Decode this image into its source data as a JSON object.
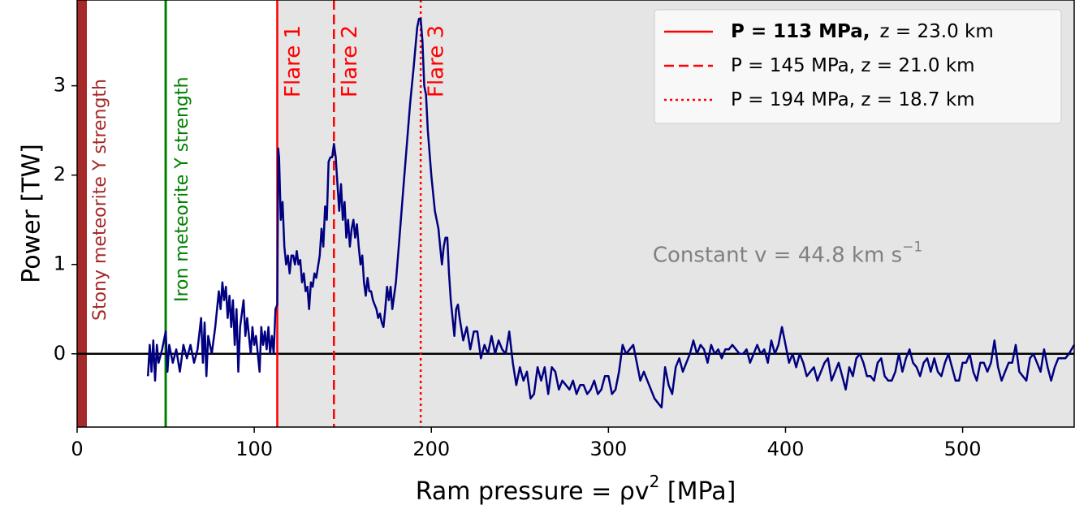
{
  "chart_data": {
    "type": "line",
    "xlabel": [
      "Ram pressure = ρv",
      "2",
      " [MPa]"
    ],
    "ylabel": "Power  [TW]",
    "xlim": [
      0,
      563
    ],
    "ylim": [
      -0.82,
      3.96
    ],
    "xticks": [
      0,
      100,
      200,
      300,
      400,
      500
    ],
    "yticks": [
      0,
      1,
      2,
      3
    ],
    "hline": 0,
    "shade_from": 113,
    "shade_color": "#e5e5e5",
    "bands": [
      {
        "range": [
          0,
          5.5
        ],
        "color": "#a52a2a",
        "label": "Stony meteorite Y strength"
      }
    ],
    "markers": [
      {
        "x": 50,
        "color": "#008000",
        "label": "Iron meteorite Y strength"
      }
    ],
    "flares": [
      {
        "x": 113,
        "label": "Flare 1",
        "dash": "solid",
        "legend_bold": "P = 113 MPa,",
        "legend": "z = 23.0 km"
      },
      {
        "x": 145,
        "label": "Flare 2",
        "dash": "dashed",
        "legend": "P = 145 MPa, z = 21.0 km"
      },
      {
        "x": 194,
        "label": "Flare 3",
        "dash": "dotted",
        "legend": "P = 194 MPa, z = 18.7 km"
      }
    ],
    "flare_color": "#ff0000",
    "legend_position": "upper right",
    "annotation": {
      "text": "Constant v = 44.8 km s",
      "sup": "−1",
      "x": 325,
      "y": 1.1
    },
    "series": [
      {
        "color": "#000080",
        "x": [
          40,
          41,
          42,
          43,
          44,
          45,
          46,
          48,
          50,
          51,
          52,
          54,
          56,
          58,
          60,
          62,
          64,
          66,
          68,
          70,
          71,
          72,
          73,
          74,
          76,
          78,
          80,
          81,
          82,
          83,
          84,
          85,
          86,
          87,
          88,
          89,
          90,
          91,
          92,
          94,
          95,
          96,
          98,
          99,
          100,
          101,
          102,
          103,
          104,
          105,
          106,
          107,
          108,
          109,
          110,
          111,
          112,
          113,
          113.5,
          114,
          115,
          116,
          117,
          118,
          119,
          120,
          121,
          122,
          123,
          124,
          125,
          126,
          127,
          128,
          129,
          130,
          131,
          132,
          133,
          134,
          135,
          137,
          138,
          139,
          140,
          141,
          142,
          143,
          144,
          145,
          146,
          147,
          148,
          149,
          150,
          151,
          152,
          153,
          154,
          155,
          156,
          157,
          158,
          159,
          160,
          161,
          162,
          163,
          164,
          165,
          166,
          167,
          168,
          169,
          170,
          171,
          172,
          173,
          174,
          175,
          176,
          177,
          178,
          180,
          182,
          184,
          186,
          188,
          190,
          192,
          193,
          194,
          195,
          196,
          197,
          198,
          200,
          202,
          204,
          205,
          206,
          207,
          208,
          209,
          210,
          211,
          212,
          213,
          214,
          215,
          216,
          218,
          220,
          222,
          224,
          226,
          228,
          230,
          232,
          234,
          236,
          238,
          240,
          242,
          244,
          246,
          248,
          250,
          252,
          254,
          256,
          258,
          260,
          262,
          264,
          266,
          268,
          270,
          272,
          274,
          276,
          278,
          280,
          282,
          284,
          286,
          288,
          290,
          292,
          294,
          296,
          298,
          300,
          302,
          304,
          306,
          308,
          310,
          312,
          314,
          316,
          318,
          320,
          322,
          324,
          326,
          328,
          330,
          332,
          334,
          336,
          338,
          340,
          342,
          344,
          346,
          348,
          350,
          352,
          354,
          356,
          358,
          360,
          362,
          364,
          366,
          368,
          370,
          372,
          374,
          376,
          378,
          380,
          382,
          384,
          386,
          388,
          390,
          392,
          394,
          396,
          398,
          400,
          402,
          404,
          406,
          408,
          410,
          412,
          414,
          416,
          418,
          420,
          422,
          424,
          426,
          428,
          430,
          432,
          434,
          436,
          438,
          440,
          442,
          444,
          446,
          448,
          450,
          452,
          454,
          456,
          458,
          460,
          462,
          464,
          466,
          468,
          470,
          472,
          474,
          476,
          478,
          480,
          482,
          484,
          486,
          488,
          490,
          492,
          494,
          496,
          498,
          500,
          502,
          504,
          506,
          508,
          510,
          512,
          514,
          516,
          518,
          520,
          522,
          524,
          526,
          528,
          530,
          532,
          534,
          536,
          538,
          540,
          542,
          544,
          546,
          548,
          550,
          552,
          554,
          556,
          558,
          560,
          563
        ],
        "y": [
          -0.25,
          0.1,
          -0.2,
          0.15,
          -0.3,
          0.1,
          -0.1,
          0.05,
          0.25,
          -0.2,
          0.1,
          -0.1,
          0.05,
          -0.2,
          0.1,
          -0.05,
          0.1,
          -0.1,
          0.05,
          0.4,
          -0.1,
          0.35,
          -0.25,
          0.2,
          0.0,
          0.3,
          0.7,
          0.5,
          0.8,
          0.6,
          0.75,
          0.4,
          0.65,
          0.3,
          0.6,
          0.1,
          0.5,
          -0.2,
          0.3,
          0.6,
          0.2,
          0.4,
          0.0,
          0.3,
          0.1,
          0.2,
          0.0,
          -0.2,
          0.3,
          0.1,
          0.25,
          0.05,
          0.3,
          0.0,
          0.2,
          0.0,
          0.5,
          0.55,
          2.3,
          2.2,
          1.5,
          1.7,
          1.2,
          1.0,
          1.1,
          0.9,
          1.1,
          1.1,
          1.0,
          1.15,
          1.0,
          1.05,
          0.8,
          0.9,
          0.7,
          0.75,
          0.5,
          0.8,
          0.75,
          0.9,
          0.85,
          1.1,
          1.4,
          1.2,
          1.65,
          1.5,
          2.15,
          2.2,
          2.2,
          2.35,
          2.2,
          1.9,
          1.6,
          1.9,
          1.5,
          1.7,
          1.3,
          1.5,
          1.2,
          1.4,
          1.5,
          1.3,
          1.45,
          1.2,
          1.0,
          1.1,
          0.8,
          0.65,
          0.85,
          0.7,
          0.7,
          0.6,
          0.55,
          0.5,
          0.4,
          0.45,
          0.35,
          0.3,
          0.5,
          0.75,
          0.6,
          0.75,
          0.5,
          0.8,
          1.3,
          1.8,
          2.3,
          2.8,
          3.2,
          3.65,
          3.75,
          3.75,
          3.5,
          3.0,
          2.9,
          2.5,
          2.0,
          1.6,
          1.4,
          1.2,
          1.0,
          1.2,
          1.3,
          1.3,
          0.9,
          0.6,
          0.4,
          0.2,
          0.5,
          0.55,
          0.4,
          0.15,
          0.3,
          0.05,
          0.25,
          0.25,
          -0.05,
          0.1,
          0.0,
          0.2,
          0.0,
          0.15,
          0.05,
          0.0,
          0.25,
          -0.1,
          -0.35,
          -0.15,
          -0.3,
          -0.2,
          -0.5,
          -0.45,
          -0.15,
          -0.3,
          -0.15,
          -0.45,
          -0.15,
          -0.2,
          -0.4,
          -0.3,
          -0.35,
          -0.4,
          -0.3,
          -0.45,
          -0.35,
          -0.35,
          -0.45,
          -0.4,
          -0.3,
          -0.45,
          -0.4,
          -0.25,
          -0.25,
          -0.45,
          -0.4,
          -0.2,
          0.1,
          0.0,
          0.05,
          0.1,
          -0.1,
          -0.3,
          -0.2,
          -0.3,
          -0.4,
          -0.5,
          -0.55,
          -0.6,
          -0.15,
          -0.35,
          -0.45,
          -0.15,
          -0.05,
          -0.2,
          -0.1,
          0.0,
          0.15,
          0.0,
          0.1,
          0.05,
          -0.1,
          0.1,
          0.0,
          0.05,
          -0.05,
          0.05,
          0.05,
          0.1,
          0.05,
          0.0,
          0.0,
          0.05,
          -0.1,
          0.0,
          0.1,
          0.0,
          0.05,
          -0.1,
          0.15,
          0.0,
          0.1,
          0.3,
          0.1,
          -0.1,
          0.0,
          -0.15,
          0.0,
          -0.1,
          -0.25,
          -0.2,
          -0.15,
          -0.3,
          -0.2,
          -0.1,
          -0.05,
          -0.3,
          -0.2,
          -0.1,
          -0.25,
          -0.4,
          -0.15,
          -0.25,
          -0.05,
          0.0,
          -0.1,
          -0.25,
          -0.25,
          -0.3,
          -0.1,
          -0.05,
          -0.25,
          -0.3,
          -0.3,
          -0.2,
          0.0,
          -0.2,
          -0.05,
          0.05,
          -0.1,
          -0.15,
          -0.25,
          -0.1,
          -0.05,
          -0.2,
          -0.05,
          -0.2,
          -0.25,
          -0.1,
          0.0,
          -0.15,
          -0.3,
          -0.3,
          -0.1,
          -0.1,
          0.0,
          -0.2,
          -0.3,
          -0.1,
          -0.1,
          -0.2,
          -0.1,
          0.15,
          -0.15,
          -0.3,
          -0.2,
          -0.1,
          -0.1,
          0.1,
          -0.2,
          -0.25,
          -0.3,
          -0.05,
          0.0,
          -0.1,
          -0.2,
          0.05,
          -0.15,
          -0.3,
          -0.15,
          -0.05,
          -0.05,
          -0.05,
          0.0,
          0.1
        ]
      }
    ]
  }
}
